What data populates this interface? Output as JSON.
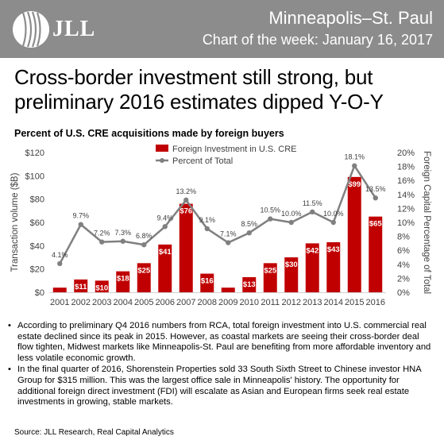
{
  "header": {
    "logo_text": "JLL",
    "city": "Minneapolis–St. Paul",
    "subtitle": "Chart of the week: January 16, 2017"
  },
  "headline": "Cross-border investment still strong, but preliminary 2016 estimates dipped Y-O-Y",
  "chart_data": {
    "type": "bar",
    "title": "Percent of U.S. CRE acquisitions made by foreign buyers",
    "categories": [
      "2001",
      "2002",
      "2003",
      "2004",
      "2005",
      "2006",
      "2007",
      "2008",
      "2009",
      "2010",
      "2011",
      "2012",
      "2013",
      "2014",
      "2015",
      "2016"
    ],
    "ylabel": "Transaction volume ($B)",
    "y2label": "Foreign Capital Percentage of Total",
    "ylim": [
      0,
      120
    ],
    "y2lim": [
      0,
      20
    ],
    "yticks": [
      "$0",
      "$20",
      "$40",
      "$60",
      "$80",
      "$100",
      "$120"
    ],
    "y2ticks": [
      "0%",
      "2%",
      "4%",
      "6%",
      "8%",
      "10%",
      "12%",
      "14%",
      "16%",
      "18%",
      "20%"
    ],
    "series": [
      {
        "name": "Foreign Investment in U.S. CRE",
        "type": "bar",
        "color": "#c00000",
        "values": [
          4,
          11,
          10,
          18,
          25,
          41,
          76,
          16,
          4,
          13,
          25,
          30,
          42,
          43,
          99,
          65
        ],
        "labels": [
          "",
          "$11",
          "$10",
          "$18",
          "$25",
          "$41",
          "$76",
          "$16",
          "",
          "$13",
          "$25",
          "$30",
          "$42",
          "$43",
          "$99",
          "$65"
        ]
      },
      {
        "name": "Percent of Total",
        "type": "line",
        "axis": "right",
        "color": "#808080",
        "values": [
          4.1,
          9.7,
          7.2,
          7.3,
          6.8,
          9.4,
          13.2,
          9.1,
          7.1,
          8.5,
          10.5,
          10.0,
          11.5,
          10.0,
          18.1,
          13.5
        ],
        "labels": [
          "4.1%",
          "9.7%",
          "7.2%",
          "7.3%",
          "6.8%",
          "9.4%",
          "13.2%",
          "9.1%",
          "7.1%",
          "8.5%",
          "10.5%",
          "10.0%",
          "11.5%",
          "10.0%",
          "18.1%",
          "13.5%"
        ]
      }
    ],
    "grid": false,
    "legend_position": "top-center"
  },
  "bullets": [
    "According to preliminary Q4 2016 numbers from RCA, total foreign investment into U.S. commercial real estate declined since its peak in 2015. However, as coastal markets are seeing their cross-border deal flow tighten, Midwest markets like Minneapolis-St. Paul are benefiting from more affordable inventory and less volatile economic growth.",
    "In the final quarter of 2016, Shorenstein Properties sold 33 South Sixth Street to Chinese investor HNA Group for $315 million. This was the largest office sale in Minneapolis' history. The opportunity for additional foreign direct investment (FDI) will escalate as Asian and European firms seek real estate investments in growing, stable markets."
  ],
  "source": "Source: JLL Research, Real Capital Analytics"
}
